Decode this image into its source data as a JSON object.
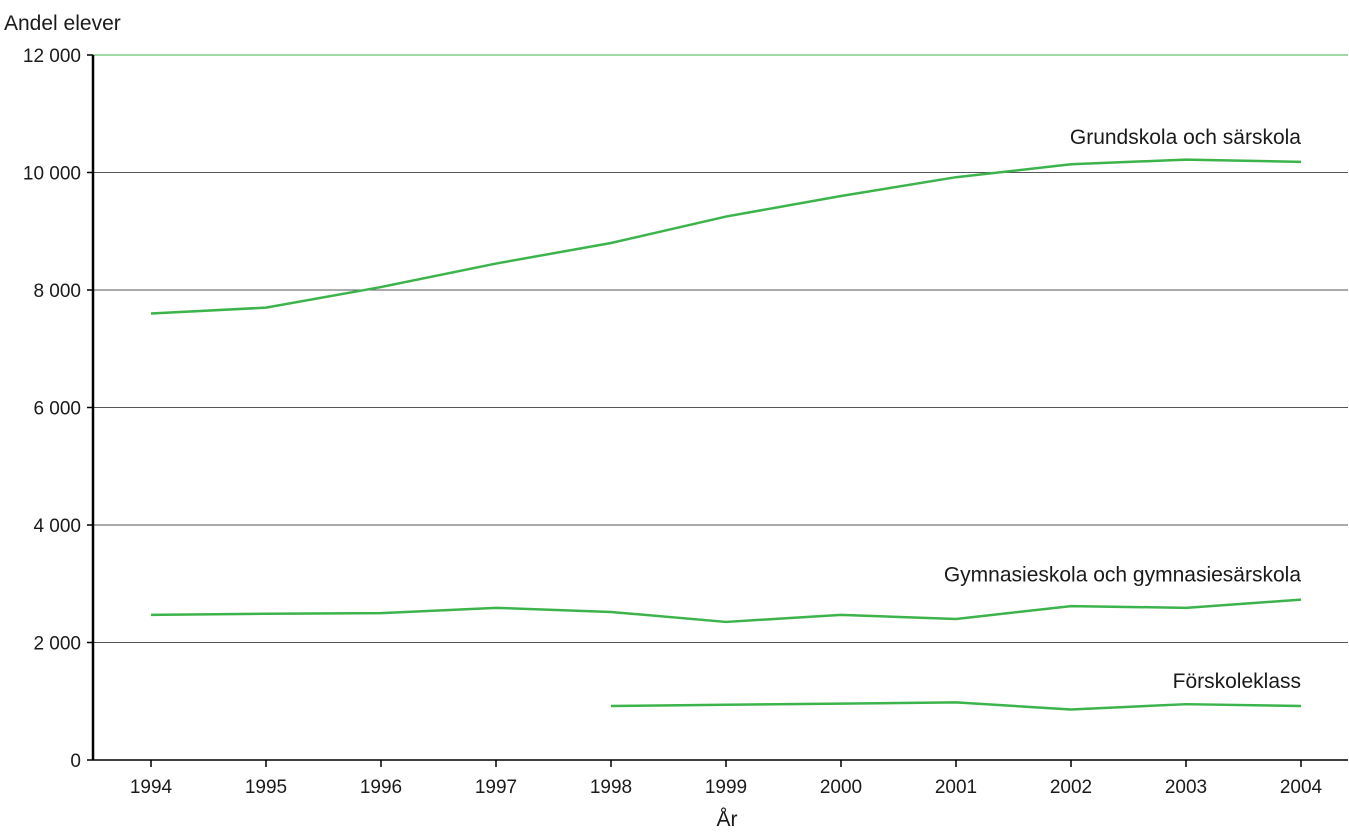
{
  "chart_data": {
    "type": "line",
    "ylabel": "Andel elever",
    "xlabel": "År",
    "x": [
      1994,
      1995,
      1996,
      1997,
      1998,
      1999,
      2000,
      2001,
      2002,
      2003,
      2004
    ],
    "x_tick_labels": [
      "1994",
      "1995",
      "1996",
      "1997",
      "1998",
      "1999",
      "2000",
      "2001",
      "2002",
      "2003",
      "2004"
    ],
    "ylim": [
      0,
      12000
    ],
    "y_ticks": [
      0,
      2000,
      4000,
      6000,
      8000,
      10000,
      12000
    ],
    "y_tick_labels": [
      "0",
      "2 000",
      "4 000",
      "6 000",
      "8 000",
      "10 000",
      "12 000"
    ],
    "grid": true,
    "legend": "direct labels at line ends",
    "colors": {
      "line": "#3cb44b",
      "grid_top": "#3cb44b",
      "grid": "#555555",
      "axis": "#000000"
    },
    "series": [
      {
        "name": "Grundskola och särskola",
        "values": [
          7600,
          7700,
          8050,
          8450,
          8800,
          9250,
          9600,
          9920,
          10140,
          10220,
          10180
        ]
      },
      {
        "name": "Gymnasieskola och gymnasiesärskola",
        "values": [
          2470,
          2490,
          2500,
          2590,
          2520,
          2350,
          2470,
          2400,
          2620,
          2590,
          2730
        ]
      },
      {
        "name": "Förskoleklass",
        "values": [
          null,
          null,
          null,
          null,
          920,
          940,
          960,
          980,
          860,
          950,
          920
        ]
      }
    ]
  }
}
